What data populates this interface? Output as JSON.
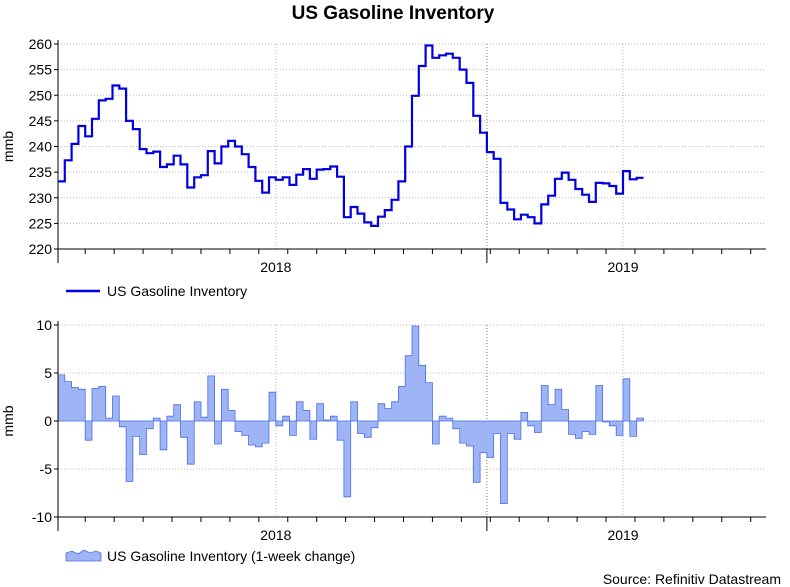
{
  "title": "US Gasoline Inventory",
  "source": "Source: Refinitiv Datastream",
  "colors": {
    "level_line": "#0000e0",
    "change_fill": "#9fb4f5",
    "change_stroke": "#4a6ee8",
    "grid": "#b8b8b8",
    "divider": "#808080"
  },
  "chart_data": [
    {
      "type": "line",
      "id": "level",
      "ylabel": "mmb",
      "ylim": [
        220,
        260
      ],
      "yticks": [
        220,
        225,
        230,
        235,
        240,
        245,
        250,
        255,
        260
      ],
      "xlim": [
        0,
        104
      ],
      "x_tick_labels": [
        {
          "x": 32,
          "label": "2018"
        },
        {
          "x": 83,
          "label": "2019"
        }
      ],
      "year_divider_x": 63,
      "grid": true,
      "legend": "bottom-left",
      "series": [
        {
          "name": "US Gasoline Inventory",
          "values": [
            233.2,
            237.3,
            240.5,
            244,
            242,
            245.4,
            249,
            249.3,
            251.9,
            251.3,
            245,
            243.4,
            239.5,
            238.7,
            239,
            236,
            236.5,
            238.2,
            236.5,
            232,
            234,
            234.4,
            239.1,
            236.7,
            240,
            241.1,
            240,
            238.5,
            236,
            233.3,
            231,
            234,
            233.5,
            234,
            232.5,
            234.5,
            235.6,
            233.7,
            235.5,
            235.6,
            236.1,
            234.1,
            226.2,
            228.2,
            226.9,
            225.2,
            224.5,
            226.3,
            227.6,
            229.6,
            233.2,
            240,
            249.9,
            255.7,
            259.7,
            257.3,
            257.8,
            258.1,
            257.3,
            255,
            252.4,
            246,
            242.7,
            238.9,
            237.6,
            229,
            227.7,
            225.8,
            226.7,
            226.2,
            225,
            228.7,
            230.4,
            233.7,
            234.9,
            233.5,
            231.7,
            230.6,
            229.2,
            232.9,
            232.8,
            232.3,
            230.8,
            235.2,
            233.6,
            233.9
          ]
        }
      ]
    },
    {
      "type": "area",
      "id": "change",
      "ylabel": "mmb",
      "ylim": [
        -10,
        10
      ],
      "yticks": [
        -10,
        -5,
        0,
        5,
        10
      ],
      "xlim": [
        0,
        104
      ],
      "x_tick_labels": [
        {
          "x": 32,
          "label": "2018"
        },
        {
          "x": 83,
          "label": "2019"
        }
      ],
      "year_divider_x": 63,
      "grid": true,
      "legend": "bottom-left",
      "series": [
        {
          "name": "US Gasoline Inventory (1-week change)",
          "values": [
            4.8,
            4.1,
            3.5,
            3.3,
            -2,
            3.4,
            3.6,
            0.3,
            2.6,
            -0.6,
            -6.3,
            -1.6,
            -3.5,
            -0.8,
            0.3,
            -3,
            0.5,
            1.7,
            -1.7,
            -4.5,
            2,
            0.4,
            4.7,
            -2.4,
            3.3,
            1.1,
            -1.1,
            -1.5,
            -2.5,
            -2.7,
            -2.3,
            3,
            -0.5,
            0.5,
            -1.5,
            2,
            1.1,
            -1.9,
            1.8,
            0.1,
            0.5,
            -2,
            -7.9,
            2,
            -1.3,
            -1.7,
            -0.7,
            1.8,
            1.3,
            2,
            3.6,
            6.8,
            9.9,
            5.8,
            4,
            -2.4,
            0.5,
            0.3,
            -0.8,
            -2.3,
            -2.6,
            -6.4,
            -3.3,
            -3.8,
            -1.3,
            -8.6,
            -1.3,
            -1.9,
            0.9,
            -0.5,
            -1.2,
            3.7,
            1.7,
            3.3,
            1.2,
            -1.4,
            -1.8,
            -1.1,
            -1.4,
            3.7,
            -0.1,
            -0.5,
            -1.5,
            4.4,
            -1.6,
            0.3
          ]
        }
      ]
    }
  ]
}
